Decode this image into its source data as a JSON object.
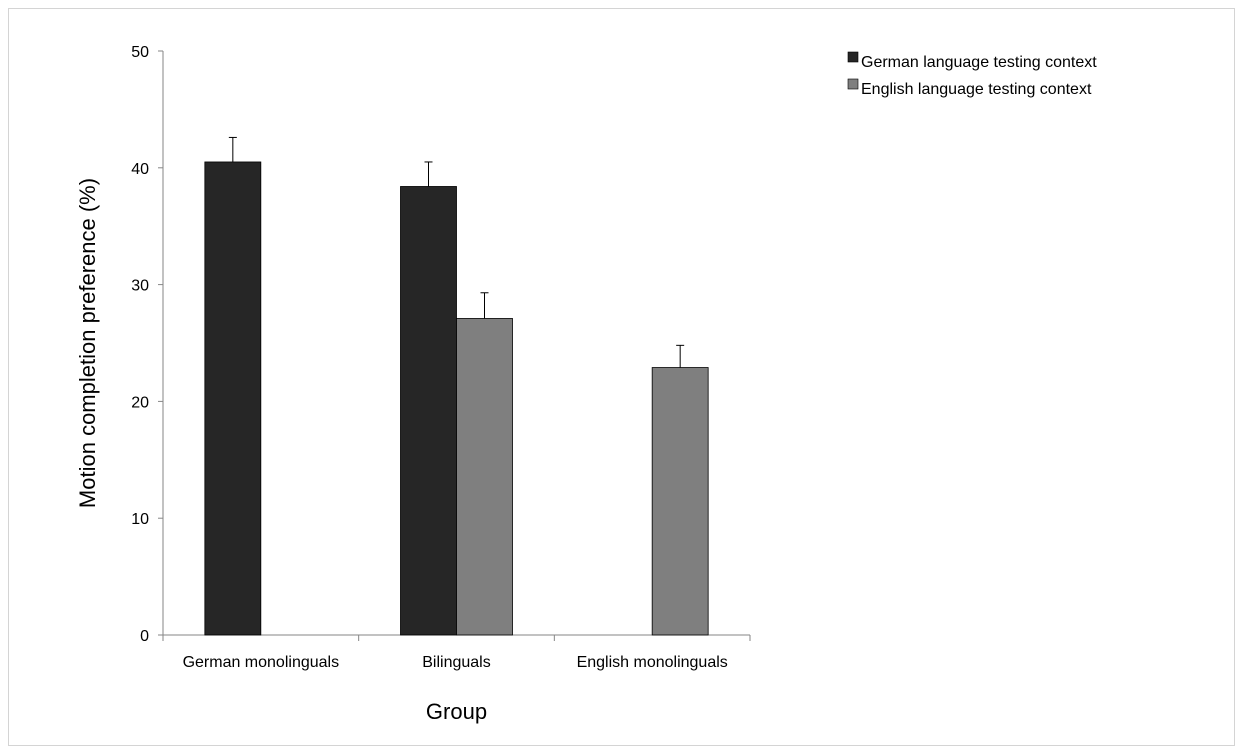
{
  "chart_data": {
    "type": "bar",
    "title": "",
    "xlabel": "Group",
    "ylabel": "Motion completion preference (%)",
    "ylim": [
      0,
      50
    ],
    "yticks": [
      0,
      10,
      20,
      30,
      40,
      50
    ],
    "categories": [
      "German monolinguals",
      "Bilinguals",
      "English monolinguals"
    ],
    "series": [
      {
        "name": "German language testing context",
        "color": "#262626",
        "values": [
          40.5,
          38.4,
          null
        ],
        "errors": [
          2.1,
          2.1,
          null
        ]
      },
      {
        "name": "English language testing context",
        "color": "#7f7f7f",
        "values": [
          null,
          27.1,
          22.9
        ],
        "errors": [
          null,
          2.2,
          1.9
        ]
      }
    ],
    "error_bars": true,
    "grid": false,
    "legend_position": "top-right"
  }
}
